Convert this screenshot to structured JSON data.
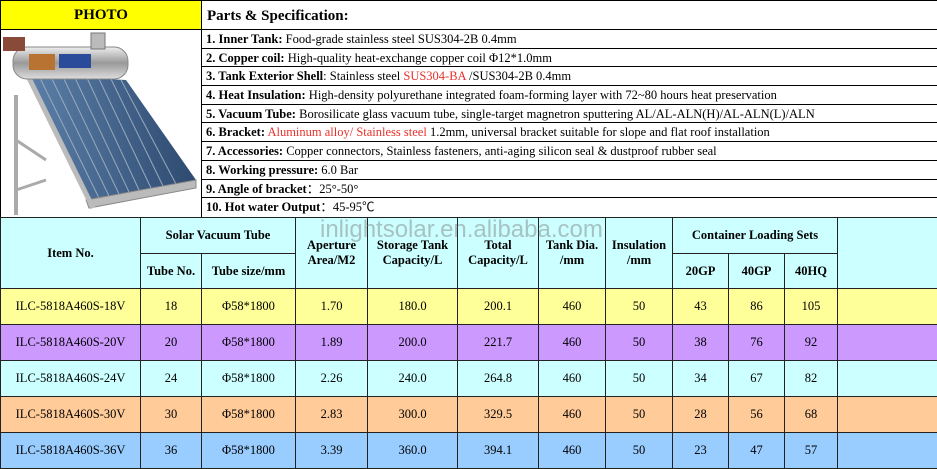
{
  "photo_label": "PHOTO",
  "spec_title": "Parts & Specification:",
  "specs": [
    {
      "label": "1. Inner Tank:",
      "text": " Food-grade stainless steel SUS304-2B 0.4mm"
    },
    {
      "label": "2. Copper coil:",
      "text": " High-quality heat-exchange copper coil Φ12*1.0mm"
    },
    {
      "label": "3. Tank Exterior Shell",
      "pre": ": Stainless steel ",
      "red": "SUS304-BA ",
      "text": "/SUS304-2B 0.4mm"
    },
    {
      "label": "4. Heat Insulation:",
      "text": " High-density polyurethane integrated foam-forming layer with 72~80 hours heat preservation"
    },
    {
      "label": "5. Vacuum Tube:",
      "text": " Borosilicate glass vacuum tube, single-target magnetron sputtering AL/AL-ALN(H)/AL-ALN(L)/ALN"
    },
    {
      "label": "6. Bracket:",
      "pre": " ",
      "red": "Aluminum alloy/ Stainless steel",
      "text": " 1.2mm, universal bracket suitable for slope and flat roof installation"
    },
    {
      "label": "7. Accessories:",
      "text": " Copper connectors, Stainless fasteners, anti-aging silicon seal & dustproof rubber seal"
    },
    {
      "label": "8. Working pressure:",
      "text": "  6.0 Bar"
    },
    {
      "label": "9. Angle of bracket",
      "text": "：25°-50°"
    },
    {
      "label": "10. Hot water Output",
      "text": "：45-95℃"
    }
  ],
  "watermark": "inlightsolar.en.alibaba.com",
  "table": {
    "headers": {
      "item": "Item No.",
      "solar_tube": "Solar Vacuum Tube",
      "tube_no": "Tube No.",
      "tube_size": "Tube size/mm",
      "aperture": "Aperture Area/M2",
      "storage": "Storage Tank Capacity/L",
      "total": "Total Capacity/L",
      "tank_dia": "Tank Dia. /mm",
      "insulation": "Insulation /mm",
      "container": "Container Loading Sets",
      "gp20": "20GP",
      "gp40": "40GP",
      "hq40": "40HQ"
    },
    "rows": [
      {
        "item": "ILC-5818A460S-18V",
        "tubes": "18",
        "size": "Φ58*1800",
        "aperture": "1.70",
        "storage": "180.0",
        "total": "200.1",
        "dia": "460",
        "ins": "50",
        "gp20": "43",
        "gp40": "86",
        "hq40": "105",
        "color": "#ffff99"
      },
      {
        "item": "ILC-5818A460S-20V",
        "tubes": "20",
        "size": "Φ58*1800",
        "aperture": "1.89",
        "storage": "200.0",
        "total": "221.7",
        "dia": "460",
        "ins": "50",
        "gp20": "38",
        "gp40": "76",
        "hq40": "92",
        "color": "#cc99ff"
      },
      {
        "item": "ILC-5818A460S-24V",
        "tubes": "24",
        "size": "Φ58*1800",
        "aperture": "2.26",
        "storage": "240.0",
        "total": "264.8",
        "dia": "460",
        "ins": "50",
        "gp20": "34",
        "gp40": "67",
        "hq40": "82",
        "color": "#ccffff"
      },
      {
        "item": "ILC-5818A460S-30V",
        "tubes": "30",
        "size": "Φ58*1800",
        "aperture": "2.83",
        "storage": "300.0",
        "total": "329.5",
        "dia": "460",
        "ins": "50",
        "gp20": "28",
        "gp40": "56",
        "hq40": "68",
        "color": "#ffcc99"
      },
      {
        "item": "ILC-5818A460S-36V",
        "tubes": "36",
        "size": "Φ58*1800",
        "aperture": "3.39",
        "storage": "360.0",
        "total": "394.1",
        "dia": "460",
        "ins": "50",
        "gp20": "23",
        "gp40": "47",
        "hq40": "57",
        "color": "#99ccff"
      }
    ]
  }
}
